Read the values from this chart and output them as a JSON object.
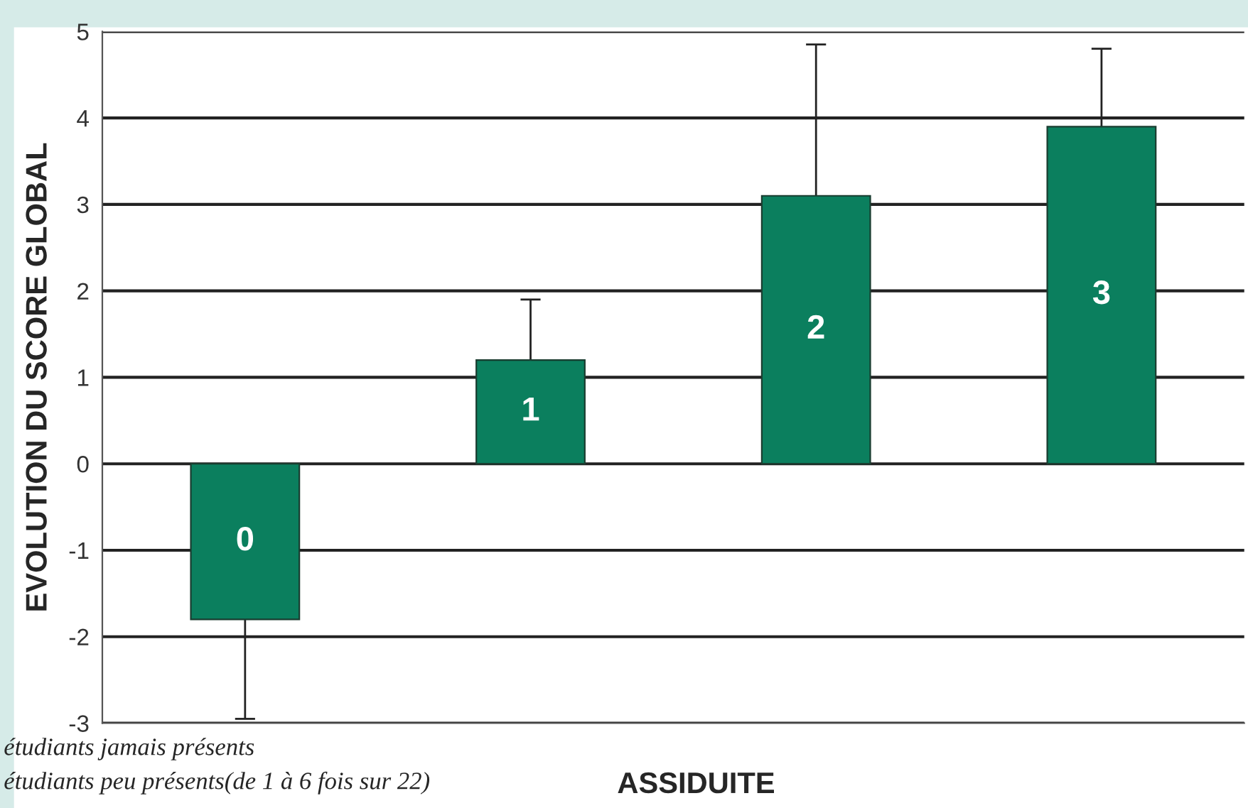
{
  "chart_data": {
    "type": "bar",
    "ylabel": "EVOLUTION DU SCORE GLOBAL",
    "xlabel": "ASSIDUITE",
    "categories": [
      "0",
      "1",
      "2",
      "3"
    ],
    "values": [
      -1.8,
      1.2,
      3.1,
      3.9
    ],
    "errors": [
      [
        -2.95,
        -1.8
      ],
      [
        1.2,
        1.9
      ],
      [
        3.1,
        4.85
      ],
      [
        3.9,
        4.8
      ]
    ],
    "color": "#0b7f5e",
    "ylim": [
      -3,
      5
    ],
    "yticks": [
      -3,
      -2,
      -1,
      0,
      1,
      2,
      3,
      4,
      5
    ],
    "grid": "y",
    "tick_labels": "y",
    "annotations": [
      "étudiants jamais présents",
      "étudiants peu présents(de 1 à 6 fois sur 22)"
    ]
  }
}
